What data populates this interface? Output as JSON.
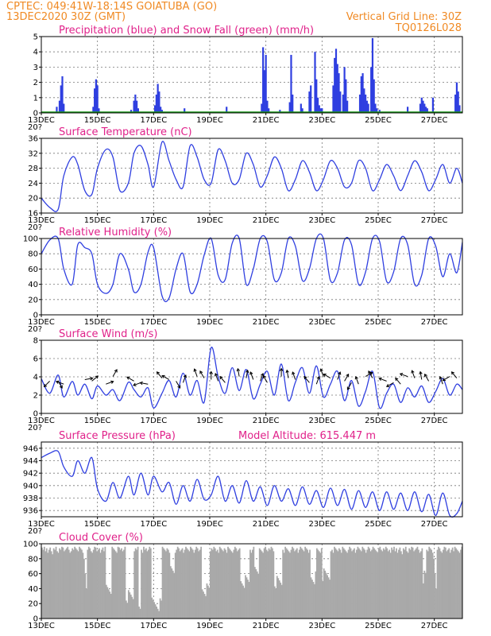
{
  "header": {
    "line1_left": "CPTEC:   049:41W-18:14S   GOIATUBA (GO)",
    "line2_left": "13DEC2020 30Z (GMT)",
    "line2_right": "Vertical Grid Line: 30Z",
    "line3_right": "TQ0126L028",
    "overflow_stub": "20?"
  },
  "colors": {
    "header": "#f08a24",
    "title": "#e0218a",
    "series": "#2f3fe0",
    "snow": "#1a9a1a",
    "cloud": "#a9a9a9"
  },
  "x_ticks": [
    "13DEC",
    "15DEC",
    "17DEC",
    "19DEC",
    "21DEC",
    "23DEC",
    "25DEC",
    "27DEC"
  ],
  "chart_data": [
    {
      "id": "precip",
      "type": "bar",
      "title": "Precipitation (blue) and Snow Fall (green) (mm/h)",
      "ylim": [
        0,
        5
      ],
      "yticks": [
        "0",
        "1",
        "2",
        "3",
        "4",
        "5"
      ],
      "grid": true,
      "x_days": [
        13.55,
        13.65,
        13.7,
        13.75,
        13.8,
        14.85,
        14.9,
        14.95,
        15.0,
        15.05,
        16.2,
        16.3,
        16.35,
        16.4,
        16.45,
        17.05,
        17.1,
        17.15,
        17.2,
        17.25,
        17.3,
        18.1,
        19.6,
        20.85,
        20.9,
        20.95,
        21.0,
        21.05,
        21.1,
        21.5,
        21.85,
        21.9,
        21.95,
        22.25,
        22.3,
        22.55,
        22.6,
        22.75,
        22.8,
        22.85,
        22.9,
        22.95,
        23.0,
        23.4,
        23.45,
        23.5,
        23.55,
        23.6,
        23.65,
        23.75,
        23.8,
        23.85,
        23.9,
        24.35,
        24.4,
        24.45,
        24.5,
        24.55,
        24.6,
        24.65,
        24.75,
        24.8,
        24.85,
        24.9,
        24.95,
        25.05,
        26.05,
        26.5,
        26.55,
        26.6,
        26.65,
        26.7,
        26.75,
        26.95,
        27.75,
        27.8,
        27.85,
        27.9
      ],
      "values": [
        0.4,
        0.8,
        1.8,
        2.4,
        0.6,
        0.4,
        1.6,
        2.2,
        1.8,
        0.3,
        0.2,
        0.8,
        1.2,
        0.8,
        0.3,
        0.5,
        1.2,
        1.9,
        1.4,
        0.4,
        0.2,
        0.3,
        0.4,
        0.6,
        4.3,
        2.8,
        3.8,
        0.8,
        0.3,
        0.2,
        0.7,
        3.8,
        1.2,
        0.6,
        0.3,
        1.4,
        1.8,
        4.0,
        2.2,
        1.0,
        0.5,
        0.3,
        0.3,
        1.8,
        3.6,
        4.2,
        3.2,
        2.6,
        1.4,
        1.2,
        3.0,
        2.2,
        0.8,
        1.2,
        2.4,
        2.6,
        1.6,
        1.2,
        0.8,
        0.6,
        3.0,
        4.9,
        2.2,
        0.6,
        0.3,
        0.2,
        0.4,
        0.6,
        1.0,
        0.8,
        0.6,
        0.4,
        0.3,
        1.0,
        1.2,
        2.0,
        1.4,
        0.5
      ],
      "snow_values": 0
    },
    {
      "id": "temp",
      "type": "line",
      "title": "Surface Temperature (nC)",
      "ylim": [
        16,
        36
      ],
      "yticks": [
        "16",
        "20",
        "24",
        "28",
        "32",
        "36"
      ],
      "x": [
        13.0,
        13.3,
        13.6,
        13.8,
        14.1,
        14.3,
        14.55,
        14.8,
        15.0,
        15.3,
        15.55,
        15.8,
        16.1,
        16.3,
        16.55,
        16.8,
        17.0,
        17.3,
        17.55,
        17.8,
        18.05,
        18.3,
        18.55,
        18.8,
        19.05,
        19.3,
        19.55,
        19.8,
        20.05,
        20.3,
        20.55,
        20.8,
        21.05,
        21.3,
        21.55,
        21.8,
        22.05,
        22.3,
        22.55,
        22.8,
        23.05,
        23.3,
        23.55,
        23.8,
        24.05,
        24.3,
        24.55,
        24.8,
        25.05,
        25.3,
        25.55,
        25.8,
        26.05,
        26.3,
        26.55,
        26.8,
        27.05,
        27.3,
        27.55,
        27.8,
        28.0
      ],
      "y": [
        20,
        17.5,
        17,
        26,
        31,
        29,
        22,
        21,
        28,
        33,
        31,
        22,
        24,
        32,
        34,
        29,
        23,
        35,
        30,
        25,
        23,
        34,
        31,
        25,
        24,
        33,
        30,
        24,
        25,
        32,
        29,
        23,
        26,
        31,
        28,
        22,
        25,
        30,
        27,
        22,
        25,
        30,
        28,
        23,
        24,
        30,
        28,
        22,
        25,
        29,
        26,
        22,
        26,
        30,
        27,
        22,
        25,
        29,
        24,
        28,
        24
      ]
    },
    {
      "id": "rh",
      "type": "line",
      "title": "Relative Humidity (%)",
      "ylim": [
        0,
        100
      ],
      "yticks": [
        "0",
        "20",
        "40",
        "60",
        "80",
        "100"
      ],
      "x": [
        13.0,
        13.3,
        13.6,
        13.8,
        14.1,
        14.3,
        14.55,
        14.8,
        15.0,
        15.3,
        15.55,
        15.8,
        16.1,
        16.3,
        16.55,
        16.8,
        17.0,
        17.3,
        17.55,
        17.8,
        18.05,
        18.3,
        18.55,
        18.8,
        19.05,
        19.3,
        19.55,
        19.8,
        20.05,
        20.3,
        20.55,
        20.8,
        21.05,
        21.3,
        21.55,
        21.8,
        22.05,
        22.3,
        22.55,
        22.8,
        23.05,
        23.3,
        23.55,
        23.8,
        24.05,
        24.3,
        24.55,
        24.8,
        25.05,
        25.3,
        25.55,
        25.8,
        26.05,
        26.3,
        26.55,
        26.8,
        27.05,
        27.3,
        27.55,
        27.8,
        28.0
      ],
      "y": [
        80,
        98,
        100,
        60,
        40,
        92,
        88,
        80,
        40,
        28,
        40,
        80,
        60,
        30,
        40,
        82,
        88,
        25,
        22,
        60,
        80,
        30,
        40,
        78,
        100,
        52,
        46,
        94,
        100,
        40,
        60,
        100,
        96,
        46,
        55,
        100,
        90,
        45,
        60,
        100,
        100,
        45,
        55,
        98,
        92,
        40,
        56,
        100,
        96,
        44,
        56,
        100,
        92,
        40,
        52,
        100,
        90,
        50,
        80,
        55,
        95
      ]
    },
    {
      "id": "wind",
      "type": "line",
      "title": "Surface Wind (m/s)",
      "ylim": [
        0,
        8
      ],
      "yticks": [
        "0",
        "2",
        "4",
        "6",
        "8"
      ],
      "x": [
        13.0,
        13.3,
        13.6,
        13.8,
        14.1,
        14.3,
        14.55,
        14.8,
        15.0,
        15.3,
        15.55,
        15.8,
        16.1,
        16.3,
        16.55,
        16.8,
        17.0,
        17.3,
        17.55,
        17.8,
        18.05,
        18.3,
        18.55,
        18.8,
        19.05,
        19.3,
        19.55,
        19.8,
        20.05,
        20.3,
        20.55,
        20.8,
        21.05,
        21.3,
        21.55,
        21.8,
        22.05,
        22.3,
        22.55,
        22.8,
        23.05,
        23.3,
        23.55,
        23.8,
        24.05,
        24.3,
        24.55,
        24.8,
        25.05,
        25.3,
        25.55,
        25.8,
        26.05,
        26.3,
        26.55,
        26.8,
        27.05,
        27.3,
        27.55,
        27.8,
        28.0
      ],
      "y": [
        3.8,
        2.2,
        4.2,
        1.8,
        3.5,
        2.0,
        3.2,
        1.6,
        3.0,
        2.0,
        2.6,
        1.4,
        3.4,
        2.6,
        1.8,
        2.8,
        0.6,
        2.2,
        3.6,
        1.8,
        4.4,
        2.0,
        3.6,
        1.2,
        7.2,
        4.0,
        2.2,
        5.0,
        2.5,
        4.8,
        1.6,
        3.2,
        4.6,
        2.0,
        5.4,
        1.4,
        3.4,
        5.0,
        2.2,
        5.2,
        1.8,
        3.2,
        4.6,
        1.4,
        3.6,
        0.8,
        2.4,
        4.6,
        0.6,
        2.2,
        3.2,
        1.2,
        2.8,
        1.8,
        3.0,
        1.2,
        2.4,
        3.8,
        2.0,
        3.2,
        2.6
      ],
      "arrows": [
        [
          13.3,
          315
        ],
        [
          13.6,
          30
        ],
        [
          13.8,
          250
        ],
        [
          14.55,
          100
        ],
        [
          14.8,
          130
        ],
        [
          15.3,
          110
        ],
        [
          15.55,
          150
        ],
        [
          16.3,
          240
        ],
        [
          16.55,
          290
        ],
        [
          16.8,
          260
        ],
        [
          17.3,
          220
        ],
        [
          17.55,
          240
        ],
        [
          17.8,
          30
        ],
        [
          18.05,
          160
        ],
        [
          18.55,
          200
        ],
        [
          18.8,
          210
        ],
        [
          19.05,
          180
        ],
        [
          19.3,
          200
        ],
        [
          19.55,
          220
        ],
        [
          20.05,
          190
        ],
        [
          20.3,
          170
        ],
        [
          20.55,
          200
        ],
        [
          20.8,
          160
        ],
        [
          21.05,
          210
        ],
        [
          21.55,
          180
        ],
        [
          21.8,
          190
        ],
        [
          22.05,
          200
        ],
        [
          22.55,
          220
        ],
        [
          22.8,
          160
        ],
        [
          23.05,
          200
        ],
        [
          23.3,
          240
        ],
        [
          23.55,
          160
        ],
        [
          23.8,
          150
        ],
        [
          24.05,
          330
        ],
        [
          24.3,
          200
        ],
        [
          24.55,
          120
        ],
        [
          24.8,
          210
        ],
        [
          25.3,
          250
        ],
        [
          25.55,
          300
        ],
        [
          25.8,
          220
        ],
        [
          26.05,
          250
        ],
        [
          26.3,
          200
        ],
        [
          26.55,
          190
        ],
        [
          26.8,
          210
        ],
        [
          27.3,
          200
        ],
        [
          27.55,
          300
        ],
        [
          27.8,
          220
        ]
      ]
    },
    {
      "id": "pres",
      "type": "line",
      "title": "Surface Pressure (hPa)",
      "annotation": "Model Altitude: 615.447  m",
      "ylim": [
        935,
        947
      ],
      "yticks": [
        "936",
        "938",
        "940",
        "942",
        "944",
        "946"
      ],
      "x": [
        13.0,
        13.3,
        13.6,
        13.8,
        14.1,
        14.3,
        14.55,
        14.8,
        15.0,
        15.3,
        15.55,
        15.8,
        16.1,
        16.3,
        16.55,
        16.8,
        17.0,
        17.3,
        17.55,
        17.8,
        18.05,
        18.3,
        18.55,
        18.8,
        19.05,
        19.3,
        19.55,
        19.8,
        20.05,
        20.3,
        20.55,
        20.8,
        21.05,
        21.3,
        21.55,
        21.8,
        22.05,
        22.3,
        22.55,
        22.8,
        23.05,
        23.3,
        23.55,
        23.8,
        24.05,
        24.3,
        24.55,
        24.8,
        25.05,
        25.3,
        25.55,
        25.8,
        26.05,
        26.3,
        26.55,
        26.8,
        27.05,
        27.3,
        27.55,
        27.8,
        28.0
      ],
      "y": [
        944.5,
        945.2,
        945.5,
        943.0,
        941.5,
        944.0,
        942.0,
        944.5,
        939.5,
        937.5,
        940.5,
        938.0,
        941.5,
        938.5,
        942.0,
        938.5,
        941.5,
        939.0,
        940.5,
        937.0,
        940.0,
        937.5,
        941.0,
        937.8,
        938.5,
        941.5,
        937.5,
        940.0,
        937.2,
        940.8,
        937.5,
        939.8,
        936.8,
        940.0,
        937.5,
        939.5,
        936.8,
        939.8,
        937.0,
        939.2,
        936.5,
        939.6,
        936.8,
        939.4,
        936.2,
        939.2,
        936.5,
        939.0,
        936.0,
        939.0,
        936.2,
        938.8,
        936.0,
        939.0,
        935.8,
        938.6,
        935.2,
        938.8,
        935.2,
        935.5,
        937.5
      ]
    },
    {
      "id": "cloud",
      "type": "bar",
      "title": "Cloud Cover (%)",
      "ylim": [
        0,
        100
      ],
      "yticks": [
        "0",
        "20",
        "40",
        "60",
        "80",
        "100"
      ],
      "x_range_days": [
        13.0,
        28.0
      ],
      "values": [
        95,
        92,
        96,
        90,
        94,
        88,
        92,
        95,
        90,
        86,
        94,
        92,
        96,
        90,
        88,
        94,
        92,
        96,
        95,
        90,
        92,
        94,
        96,
        92,
        88,
        90,
        94,
        92,
        96,
        94,
        92,
        90,
        96,
        94,
        92,
        88,
        80,
        60,
        40,
        92,
        96,
        94,
        90,
        88,
        92,
        96,
        95,
        90,
        92,
        94,
        88,
        92,
        95,
        90,
        96,
        94,
        92,
        90,
        88,
        92,
        96,
        94,
        92,
        90,
        88,
        96,
        95,
        92,
        94,
        90,
        92,
        96,
        94,
        92,
        90,
        88,
        94,
        96,
        92,
        90,
        94,
        92,
        96,
        94,
        90,
        92,
        88,
        96,
        92,
        94,
        90,
        92,
        96,
        94,
        92,
        90,
        88,
        92,
        96,
        94,
        90,
        92,
        88,
        96,
        94,
        92,
        90,
        94,
        92,
        88,
        96,
        94,
        92,
        90,
        88,
        92,
        96,
        94,
        90,
        92,
        94,
        88,
        92,
        96,
        94,
        92,
        90,
        96,
        94,
        92,
        88,
        92,
        96,
        94,
        90,
        92,
        96,
        94,
        92,
        90,
        88,
        94,
        96,
        92,
        90,
        94,
        92,
        96,
        94,
        90,
        92,
        88,
        96,
        94,
        92,
        90,
        94,
        92,
        88,
        96,
        94,
        92,
        90,
        88,
        92,
        96,
        94,
        90,
        92,
        94,
        88,
        92,
        96,
        94,
        92,
        90,
        96,
        94,
        92,
        88,
        92,
        96,
        94,
        90,
        92,
        96,
        94,
        92,
        90,
        88,
        94,
        96,
        92,
        90,
        94,
        92,
        96,
        94,
        90,
        92,
        88,
        96,
        94,
        92,
        90,
        94,
        92,
        88,
        96,
        94,
        92,
        90,
        88,
        92,
        96,
        94,
        90,
        92,
        94,
        88,
        92,
        96,
        94,
        92,
        90,
        96,
        94,
        92,
        88,
        92,
        96,
        94,
        90,
        92,
        96,
        94,
        92,
        90,
        88,
        94,
        96,
        92,
        90,
        94,
        92,
        96,
        94,
        90,
        92,
        88,
        96,
        94,
        92,
        90,
        94,
        92,
        88,
        96,
        94,
        92,
        90,
        88,
        92,
        96,
        94,
        90,
        92,
        94,
        88,
        92,
        96,
        94,
        92,
        90,
        96,
        94,
        92,
        88,
        92,
        96,
        94,
        90,
        92,
        96,
        94,
        92,
        90,
        88,
        94,
        96,
        92,
        90,
        94,
        92,
        96,
        94,
        90,
        92,
        88
      ],
      "dips": [
        [
          15.3,
          15.5,
          30
        ],
        [
          16.0,
          16.3,
          20
        ],
        [
          16.45,
          16.55,
          5
        ],
        [
          16.9,
          17.3,
          10
        ],
        [
          17.6,
          17.75,
          60
        ],
        [
          18.7,
          19.0,
          30
        ],
        [
          20.1,
          20.4,
          40
        ],
        [
          20.6,
          20.75,
          55
        ],
        [
          21.3,
          21.6,
          40
        ],
        [
          22.6,
          22.8,
          45
        ],
        [
          23.0,
          23.3,
          50
        ],
        [
          26.6,
          26.7,
          45
        ]
      ]
    }
  ]
}
